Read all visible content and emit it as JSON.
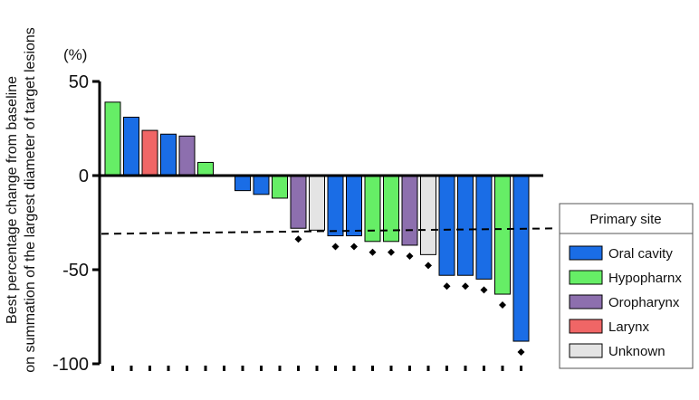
{
  "chart_data": {
    "type": "bar",
    "subtype": "waterfall",
    "ylabel_lines": [
      "Best percentage change from baseline",
      "on summation of the largest diameter of target lesions"
    ],
    "unit_label": "(%)",
    "ylim": [
      -100,
      50
    ],
    "yticks": [
      {
        "value": 50,
        "label": "50"
      },
      {
        "value": 0,
        "label": "0"
      },
      {
        "value": -50,
        "label": "-50"
      },
      {
        "value": -100,
        "label": "-100"
      }
    ],
    "reference_line": {
      "value": -30,
      "style": "dashed"
    },
    "grid": false,
    "legend": {
      "title": "Primary site",
      "placement": "right",
      "entries": [
        {
          "key": "oral",
          "label": "Oral cavity",
          "color": "#1a6de6"
        },
        {
          "key": "hypo",
          "label": "Hypopharnx",
          "color": "#66ee66"
        },
        {
          "key": "oro",
          "label": "Oropharynx",
          "color": "#8d6fae"
        },
        {
          "key": "larynx",
          "label": "Larynx",
          "color": "#f06666"
        },
        {
          "key": "unknown",
          "label": "Unknown",
          "color": "#e4e4e4"
        }
      ]
    },
    "bars": [
      {
        "value": 39,
        "site": "hypo",
        "marker": false
      },
      {
        "value": 31,
        "site": "oral",
        "marker": false
      },
      {
        "value": 24,
        "site": "larynx",
        "marker": false
      },
      {
        "value": 22,
        "site": "oral",
        "marker": false
      },
      {
        "value": 21,
        "site": "oro",
        "marker": false
      },
      {
        "value": 7,
        "site": "hypo",
        "marker": false
      },
      {
        "value": 0,
        "site": "oral",
        "marker": false
      },
      {
        "value": -8,
        "site": "oral",
        "marker": false
      },
      {
        "value": -10,
        "site": "oral",
        "marker": false
      },
      {
        "value": -12,
        "site": "hypo",
        "marker": false
      },
      {
        "value": -28,
        "site": "oro",
        "marker": true
      },
      {
        "value": -29,
        "site": "unknown",
        "marker": false
      },
      {
        "value": -32,
        "site": "oral",
        "marker": true
      },
      {
        "value": -32,
        "site": "oral",
        "marker": true
      },
      {
        "value": -35,
        "site": "hypo",
        "marker": true
      },
      {
        "value": -35,
        "site": "hypo",
        "marker": true
      },
      {
        "value": -37,
        "site": "oro",
        "marker": true
      },
      {
        "value": -42,
        "site": "unknown",
        "marker": true
      },
      {
        "value": -53,
        "site": "oral",
        "marker": true
      },
      {
        "value": -53,
        "site": "oral",
        "marker": true
      },
      {
        "value": -55,
        "site": "oral",
        "marker": true
      },
      {
        "value": -63,
        "site": "hypo",
        "marker": true
      },
      {
        "value": -88,
        "site": "oral",
        "marker": true
      }
    ]
  }
}
